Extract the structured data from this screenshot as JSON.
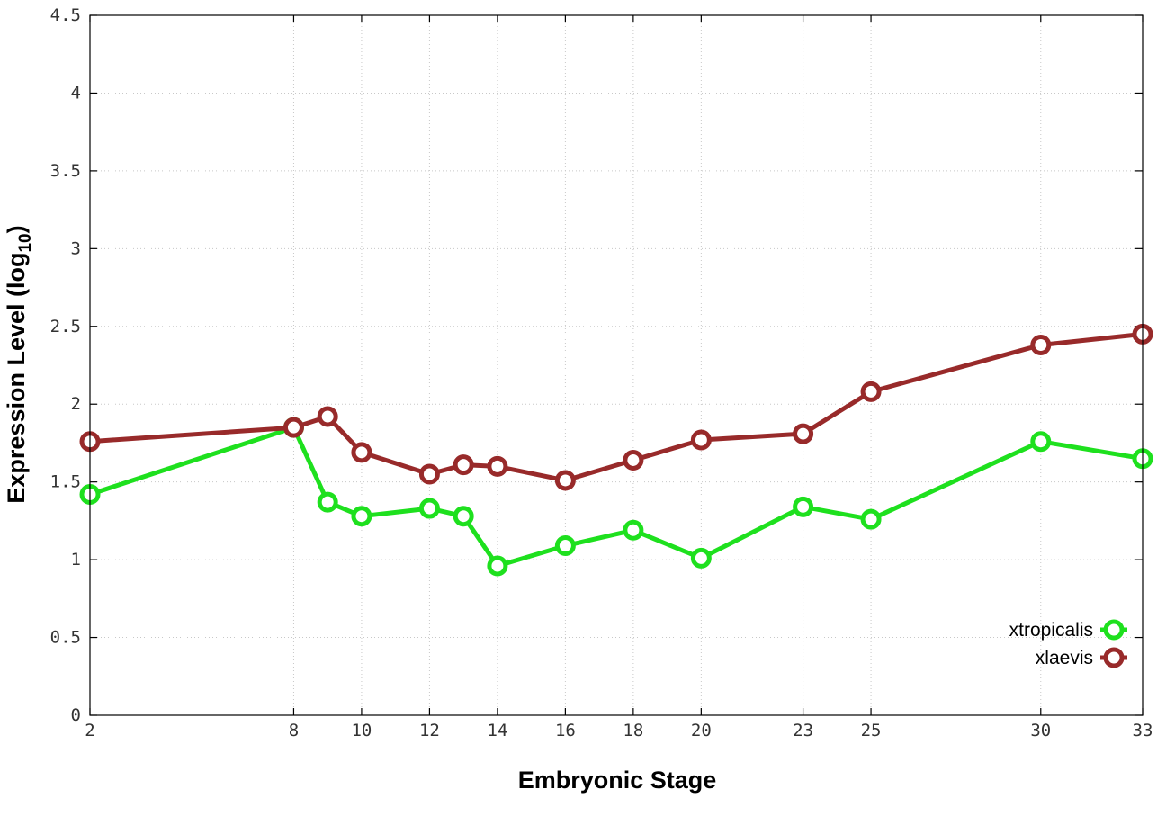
{
  "chart_data": {
    "type": "line",
    "title": "",
    "xlabel": "Embryonic Stage",
    "ylabel_main": "Expression Level (log",
    "ylabel_sub": "10",
    "ylabel_close": ")",
    "x": [
      2,
      8,
      9,
      10,
      12,
      13,
      14,
      16,
      18,
      20,
      23,
      25,
      30,
      33
    ],
    "x_tick_values": [
      2,
      8,
      10,
      12,
      14,
      16,
      18,
      20,
      23,
      25,
      30,
      33
    ],
    "x_tick_labels": [
      "2",
      "8",
      "10",
      "12",
      "14",
      "16",
      "18",
      "20",
      "23",
      "25",
      "30",
      "33"
    ],
    "xlim": [
      2,
      33
    ],
    "y_tick_values": [
      0,
      0.5,
      1,
      1.5,
      2,
      2.5,
      3,
      3.5,
      4,
      4.5
    ],
    "y_tick_labels": [
      "0",
      "0.5",
      "1",
      "1.5",
      "2",
      "2.5",
      "3",
      "3.5",
      "4",
      "4.5"
    ],
    "ylim": [
      0,
      4.5
    ],
    "grid": true,
    "legend_position": "bottom-right",
    "series": [
      {
        "name": "xtropicalis",
        "color": "#1ee01e",
        "values": [
          1.42,
          1.85,
          1.37,
          1.28,
          1.33,
          1.28,
          0.96,
          1.09,
          1.19,
          1.01,
          1.34,
          1.26,
          1.76,
          1.65
        ]
      },
      {
        "name": "xlaevis",
        "color": "#982a2a",
        "values": [
          1.76,
          1.85,
          1.92,
          1.69,
          1.55,
          1.61,
          1.6,
          1.51,
          1.64,
          1.77,
          1.81,
          2.08,
          2.38,
          2.45
        ]
      }
    ]
  }
}
